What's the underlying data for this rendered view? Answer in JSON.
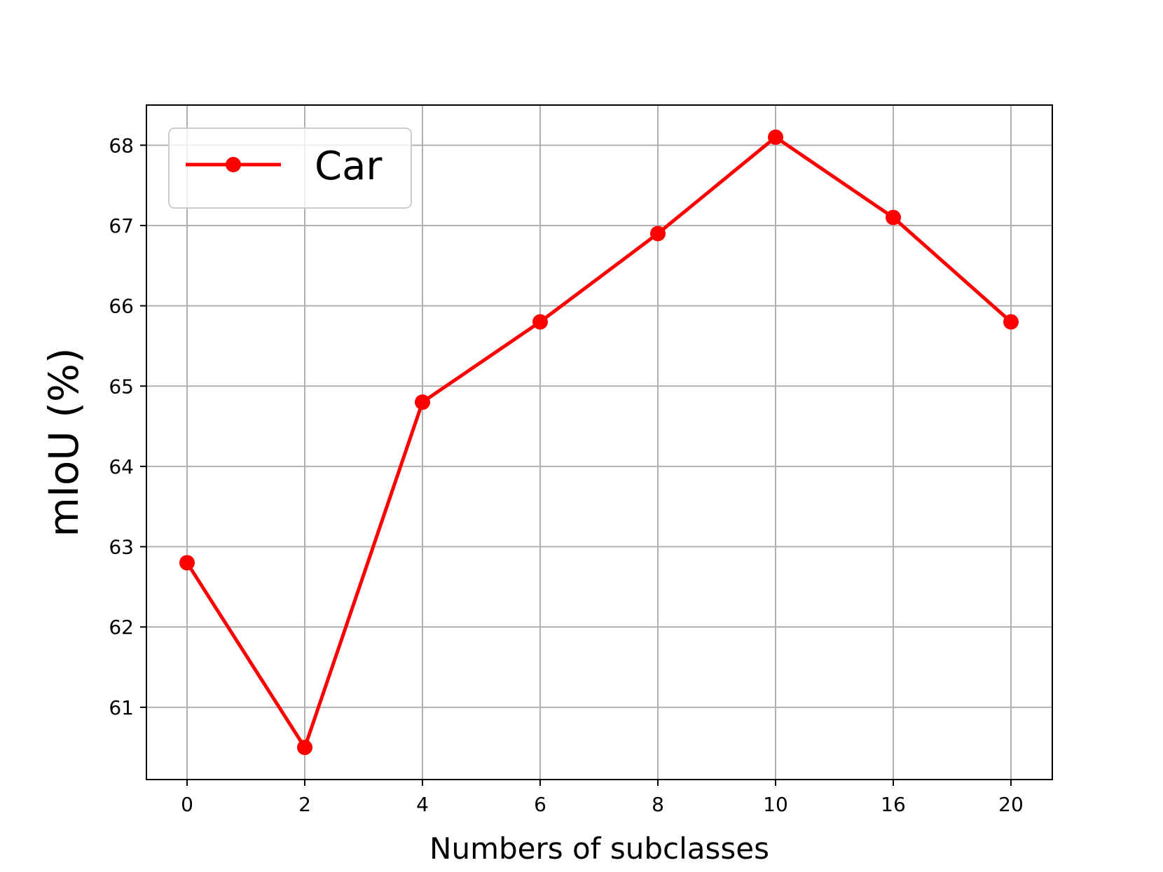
{
  "chart_data": {
    "type": "line",
    "categories": [
      "0",
      "2",
      "4",
      "6",
      "8",
      "10",
      "16",
      "20"
    ],
    "series": [
      {
        "name": "Car",
        "values": [
          62.8,
          60.5,
          64.8,
          65.8,
          66.9,
          68.1,
          67.1,
          65.8
        ],
        "color": "#ff0000",
        "marker": "circle"
      }
    ],
    "xlabel": "Numbers of subclasses",
    "ylabel": "mIoU (%)",
    "ylim": [
      60.1,
      68.5
    ],
    "yticks": [
      61,
      62,
      63,
      64,
      65,
      66,
      67,
      68
    ],
    "grid": true,
    "legend_position": "top-left",
    "grid_color": "#b0b0b0",
    "frame_color": "#000000"
  }
}
